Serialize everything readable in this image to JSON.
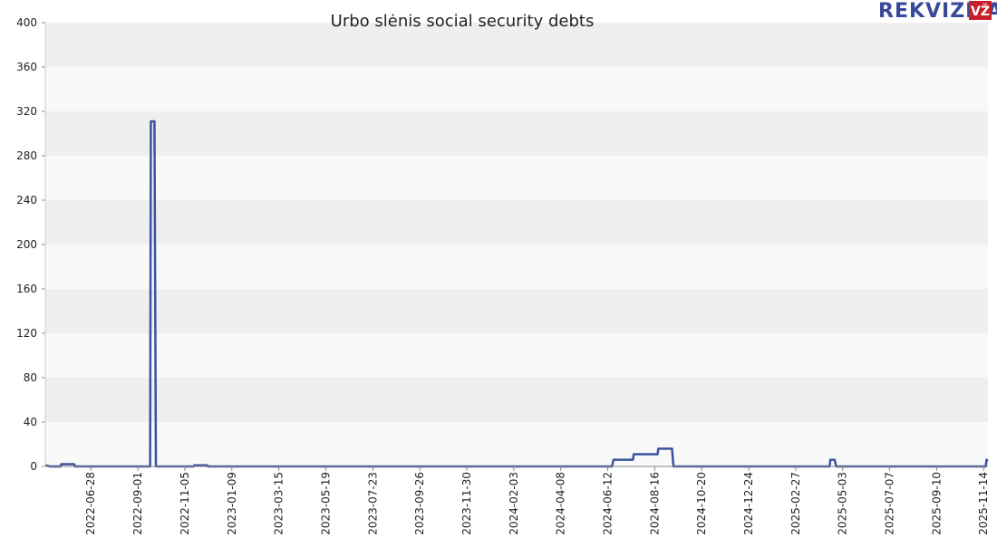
{
  "chart_data": {
    "type": "line",
    "title": "Urbo slėnis social security debts",
    "logo": {
      "text": "REKVIZITAI",
      "badge": "VŽ"
    },
    "x": [
      "2022-04-26",
      "2022-05-03",
      "2022-05-17",
      "2022-05-18",
      "2022-06-05",
      "2022-06-06",
      "2022-09-18",
      "2022-09-19",
      "2022-09-24",
      "2022-09-26",
      "2022-11-17",
      "2022-11-18",
      "2022-12-06",
      "2022-12-07",
      "2024-06-18",
      "2024-06-20",
      "2024-07-17",
      "2024-07-18",
      "2024-08-20",
      "2024-08-21",
      "2024-09-09",
      "2024-09-11",
      "2025-04-15",
      "2025-04-16",
      "2025-04-22",
      "2025-04-24",
      "2025-11-17",
      "2025-11-18",
      "2025-11-20"
    ],
    "series": [
      {
        "name": "Social security debts",
        "color": "#3d51a0",
        "values": [
          1,
          0,
          0,
          2,
          2,
          0,
          0,
          311,
          311,
          0,
          0,
          1,
          1,
          0,
          0,
          6,
          6,
          11,
          11,
          16,
          16,
          0,
          0,
          6,
          6,
          0,
          0,
          6,
          5
        ]
      }
    ],
    "xlim": [
      "2022-04-26",
      "2025-11-20"
    ],
    "xticks": [
      "2022-06-28",
      "2022-09-01",
      "2022-11-05",
      "2023-01-09",
      "2023-03-15",
      "2023-05-19",
      "2023-07-23",
      "2023-09-26",
      "2023-11-30",
      "2024-02-03",
      "2024-04-08",
      "2024-06-12",
      "2024-08-16",
      "2024-10-20",
      "2024-12-24",
      "2025-02-27",
      "2025-05-03",
      "2025-07-07",
      "2025-09-10",
      "2025-11-14"
    ],
    "ylim": [
      0,
      400
    ],
    "yticks": [
      0,
      40,
      80,
      120,
      160,
      200,
      240,
      280,
      320,
      360,
      400
    ],
    "grid": true
  }
}
